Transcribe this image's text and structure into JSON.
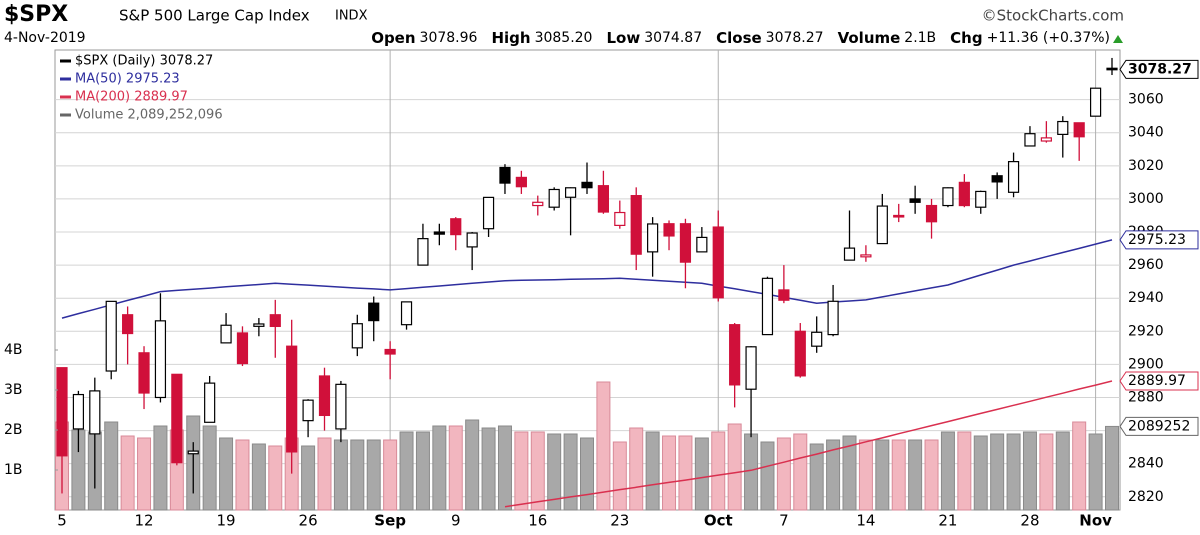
{
  "chart_data": {
    "type": "candlestick",
    "header": {
      "symbol": "$SPX",
      "name": "S&P 500 Large Cap Index",
      "exchange": "INDX",
      "credit": "©StockCharts.com",
      "date": "4-Nov-2019",
      "stats": [
        {
          "label": "Open",
          "value": "3078.96"
        },
        {
          "label": "High",
          "value": "3085.20"
        },
        {
          "label": "Low",
          "value": "3074.87"
        },
        {
          "label": "Close",
          "value": "3078.27"
        },
        {
          "label": "Volume",
          "value": "2.1B"
        },
        {
          "label": "Chg",
          "value": "+11.36 (+0.37%)"
        }
      ]
    },
    "categories": [
      "5",
      null,
      null,
      null,
      null,
      "12",
      null,
      null,
      null,
      null,
      "19",
      null,
      null,
      null,
      null,
      "26",
      null,
      null,
      null,
      null,
      "Sep",
      null,
      null,
      null,
      "9",
      null,
      null,
      null,
      null,
      "16",
      null,
      null,
      null,
      null,
      "23",
      null,
      null,
      null,
      null,
      null,
      "Oct",
      null,
      null,
      null,
      "7",
      null,
      null,
      null,
      null,
      "14",
      null,
      null,
      null,
      null,
      "21",
      null,
      null,
      null,
      null,
      "28",
      null,
      null,
      null,
      "Nov",
      null
    ],
    "price": {
      "name": "$SPX (Daily) 3078.27",
      "up_color": "#000000",
      "down_color": "#d0103a",
      "open": [
        2898,
        2861,
        2858,
        2896,
        2930,
        2907,
        2880,
        2894,
        2846,
        2865,
        2913,
        2919,
        2923,
        2930,
        2911,
        2866,
        2893,
        2861,
        2910,
        2937,
        2909,
        2924,
        2960,
        2980,
        2988,
        2971,
        2982,
        3019,
        3013,
        2996,
        2995,
        3001,
        3010,
        3008,
        2984,
        3002,
        2968,
        2985,
        2985,
        2968,
        2983,
        2924,
        2885,
        2918,
        2945,
        2920,
        2911,
        2918,
        2963,
        2965,
        2973,
        2990,
        3000,
        2996,
        2996,
        3010,
        2995,
        3014,
        3004,
        3032,
        3035,
        3039,
        3046,
        3050,
        3078.96
      ],
      "high": [
        2898,
        2884,
        2892,
        2938,
        2935,
        2911,
        2943,
        2894,
        2853,
        2893,
        2931,
        2923,
        2928,
        2939,
        2927,
        2879,
        2898,
        2890,
        2930,
        2941,
        2914,
        2938,
        2985,
        2985,
        2989,
        2980,
        3001,
        3021,
        3017,
        3002,
        3007,
        3007,
        3022,
        3017,
        2999,
        3007,
        2989,
        2987,
        2988,
        2983,
        2993,
        2925,
        2911,
        2953,
        2960,
        2925,
        2929,
        2948,
        2993,
        2972,
        3003,
        2997,
        3008,
        3000,
        3007,
        3015,
        3005,
        3016,
        3028,
        3044,
        3047,
        3050,
        3046,
        3066,
        3085.2
      ],
      "low": [
        2822,
        2847,
        2825,
        2891,
        2900,
        2873,
        2877,
        2839,
        2822,
        2865,
        2913,
        2899,
        2917,
        2904,
        2834,
        2856,
        2860,
        2853,
        2905,
        2914,
        2891,
        2921,
        2960,
        2972,
        2969,
        2957,
        2977,
        3003,
        3003,
        2990,
        2993,
        2978,
        3003,
        2991,
        2982,
        2957,
        2953,
        2969,
        2946,
        2968,
        2938,
        2874,
        2856,
        2918,
        2937,
        2892,
        2907,
        2917,
        2963,
        2962,
        2973,
        2986,
        2991,
        2976,
        2995,
        2995,
        2991,
        3000,
        3001,
        3032,
        3034,
        3025,
        3023,
        3050,
        3074.87
      ],
      "close": [
        2844.74,
        2881.77,
        2883.98,
        2938.09,
        2918.65,
        2882.7,
        2926.32,
        2840.6,
        2847.6,
        2888.68,
        2923.65,
        2900.51,
        2924.43,
        2922.95,
        2847.11,
        2878.38,
        2869.16,
        2887.94,
        2924.58,
        2926.46,
        2906.27,
        2937.78,
        2976.0,
        2978.71,
        2978.43,
        2979.39,
        3000.93,
        3009.57,
        3007.39,
        2997.96,
        3005.7,
        3006.73,
        3006.79,
        2992.07,
        2991.78,
        2966.6,
        2984.87,
        2977.62,
        2961.79,
        2976.74,
        2940.25,
        2887.61,
        2910.63,
        2952.01,
        2938.79,
        2893.06,
        2919.4,
        2938.13,
        2970.27,
        2966.15,
        2995.68,
        2989.69,
        2997.95,
        2986.2,
        3006.72,
        2995.99,
        3004.52,
        3010.29,
        3022.55,
        3039.42,
        3036.89,
        3046.77,
        3037.56,
        3066.91,
        3078.27
      ]
    },
    "lines": [
      {
        "name": "MA(50) 2975.23",
        "color": "#2e2e9e",
        "values": [
          2928,
          2930.7,
          2933.3,
          2936,
          2938.7,
          2941.3,
          2944,
          2944.7,
          2945.4,
          2946.1,
          2946.9,
          2947.6,
          2948.3,
          2949,
          2948.4,
          2947.9,
          2947.3,
          2946.7,
          2946.1,
          2945.6,
          2945,
          2945.8,
          2946.6,
          2947.4,
          2948.2,
          2949,
          2949.8,
          2950.6,
          2950.8,
          2951,
          2951.2,
          2951.4,
          2951.6,
          2951.8,
          2952,
          2951.4,
          2950.8,
          2950.2,
          2949.6,
          2949,
          2947.3,
          2945.7,
          2944,
          2942.3,
          2940.5,
          2938.8,
          2937,
          2937.7,
          2938.3,
          2939,
          2940.8,
          2942.6,
          2944.4,
          2946.2,
          2948,
          2951,
          2954,
          2957,
          2960,
          2962.5,
          2965.1,
          2967.6,
          2970.1,
          2972.7,
          2975.23
        ]
      },
      {
        "name": "MA(200) 2889.97",
        "color": "#d9304f",
        "values": [
          null,
          null,
          null,
          null,
          null,
          null,
          null,
          null,
          null,
          null,
          null,
          null,
          null,
          null,
          null,
          null,
          null,
          null,
          null,
          null,
          null,
          null,
          null,
          null,
          null,
          null,
          null,
          2814,
          2815.5,
          2817,
          2818.4,
          2819.9,
          2821.3,
          2822.8,
          2824.3,
          2825.7,
          2827.2,
          2828.7,
          2830.1,
          2831.6,
          2833.1,
          2834.5,
          2836,
          2838.5,
          2840.9,
          2843.4,
          2845.8,
          2848.3,
          2850.7,
          2853.2,
          2855.6,
          2858.1,
          2860.5,
          2863,
          2865.4,
          2867.9,
          2870.4,
          2872.8,
          2875.3,
          2877.7,
          2880.2,
          2882.6,
          2885.1,
          2887.5,
          2889.97
        ]
      }
    ],
    "volume": {
      "name": "Volume 2,089,252,096",
      "flag_label": "2089252",
      "up_color": "#a8a8a8",
      "down_color": "#f2b6bf",
      "values": [
        2200000000,
        2000000000,
        1950000000,
        2200000000,
        1850000000,
        1800000000,
        2100000000,
        2000000000,
        2350000000,
        2100000000,
        1800000000,
        1750000000,
        1650000000,
        1600000000,
        1800000000,
        1600000000,
        1800000000,
        1750000000,
        1750000000,
        1750000000,
        1750000000,
        1950000000,
        1950000000,
        2100000000,
        2100000000,
        2250000000,
        2050000000,
        2100000000,
        1950000000,
        1950000000,
        1900000000,
        1900000000,
        1800000000,
        3200000000,
        1700000000,
        2050000000,
        1950000000,
        1850000000,
        1850000000,
        1800000000,
        1950000000,
        2150000000,
        1900000000,
        1700000000,
        1800000000,
        1900000000,
        1650000000,
        1750000000,
        1850000000,
        1750000000,
        1750000000,
        1750000000,
        1750000000,
        1750000000,
        1950000000,
        1950000000,
        1850000000,
        1900000000,
        1900000000,
        1950000000,
        1900000000,
        1950000000,
        2200000000,
        1900000000,
        2089252096
      ],
      "y2lim": [
        0,
        11500000000
      ],
      "y2ticks": [
        {
          "value": 1000000000,
          "label": "1B"
        },
        {
          "value": 2000000000,
          "label": "2B"
        },
        {
          "value": 3000000000,
          "label": "3B"
        },
        {
          "value": 4000000000,
          "label": "4B"
        }
      ]
    },
    "ylim": [
      2812,
      3090
    ],
    "yticks": [
      2820,
      2840,
      2860,
      2880,
      2900,
      2920,
      2940,
      2960,
      2980,
      3000,
      3020,
      3040,
      3060
    ],
    "grid": true
  }
}
